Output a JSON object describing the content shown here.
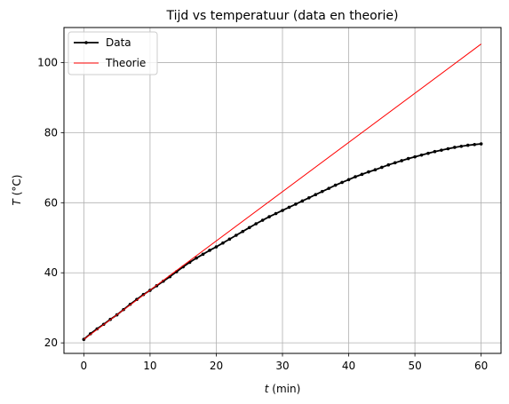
{
  "chart_data": {
    "type": "line",
    "title": "Tijd vs temperatuur (data en theorie)",
    "xlabel_var": "t",
    "xlabel_unit": " (min)",
    "ylabel_var": "T",
    "ylabel_unit": " (°C)",
    "xlim": [
      -3,
      63
    ],
    "ylim": [
      17,
      110
    ],
    "xticks": [
      0,
      10,
      20,
      30,
      40,
      50,
      60
    ],
    "yticks": [
      20,
      40,
      60,
      80,
      100
    ],
    "grid": true,
    "legend_position": "top-left",
    "series": [
      {
        "name": "Data",
        "color": "#000000",
        "marker": "dot",
        "x": [
          0,
          1,
          2,
          3,
          4,
          5,
          6,
          7,
          8,
          9,
          10,
          11,
          12,
          13,
          14,
          15,
          16,
          17,
          18,
          19,
          20,
          21,
          22,
          23,
          24,
          25,
          26,
          27,
          28,
          29,
          30,
          31,
          32,
          33,
          34,
          35,
          36,
          37,
          38,
          39,
          40,
          41,
          42,
          43,
          44,
          45,
          46,
          47,
          48,
          49,
          50,
          51,
          52,
          53,
          54,
          55,
          56,
          57,
          58,
          59,
          60
        ],
        "y": [
          21.0,
          22.6,
          24.0,
          25.3,
          26.7,
          28.0,
          29.5,
          31.0,
          32.4,
          33.8,
          35.0,
          36.3,
          37.6,
          38.9,
          40.3,
          41.7,
          43.0,
          44.2,
          45.3,
          46.4,
          47.4,
          48.5,
          49.6,
          50.7,
          51.8,
          52.9,
          54.0,
          55.0,
          56.0,
          56.9,
          57.8,
          58.7,
          59.6,
          60.5,
          61.4,
          62.3,
          63.2,
          64.1,
          65.0,
          65.8,
          66.6,
          67.4,
          68.1,
          68.8,
          69.4,
          70.1,
          70.8,
          71.4,
          72.0,
          72.6,
          73.1,
          73.6,
          74.1,
          74.6,
          75.0,
          75.4,
          75.8,
          76.1,
          76.4,
          76.6,
          76.8
        ]
      },
      {
        "name": "Theorie",
        "color": "#ff0000",
        "marker": "none",
        "x": [
          0,
          60
        ],
        "y": [
          21.0,
          105.3
        ]
      }
    ]
  }
}
